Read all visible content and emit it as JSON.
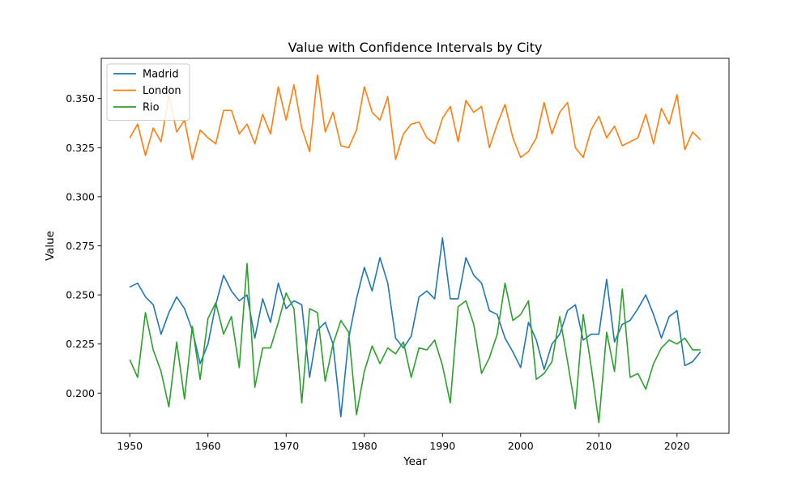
{
  "chart_data": {
    "type": "line",
    "title": "Value with Confidence Intervals by City",
    "xlabel": "Year",
    "ylabel": "Value",
    "xlim": [
      1946.35,
      2026.65
    ],
    "ylim": [
      0.1795,
      0.3705
    ],
    "xticks": [
      1950,
      1960,
      1970,
      1980,
      1990,
      2000,
      2010,
      2020
    ],
    "yticks": [
      0.2,
      0.225,
      0.25,
      0.275,
      0.3,
      0.325,
      0.35
    ],
    "ytick_labels": [
      "0.200",
      "0.225",
      "0.250",
      "0.275",
      "0.300",
      "0.325",
      "0.350"
    ],
    "grid": false,
    "legend_position": "top-left",
    "x": [
      1950,
      1951,
      1952,
      1953,
      1954,
      1955,
      1956,
      1957,
      1958,
      1959,
      1960,
      1961,
      1962,
      1963,
      1964,
      1965,
      1966,
      1967,
      1968,
      1969,
      1970,
      1971,
      1972,
      1973,
      1974,
      1975,
      1976,
      1977,
      1978,
      1979,
      1980,
      1981,
      1982,
      1983,
      1984,
      1985,
      1986,
      1987,
      1988,
      1989,
      1990,
      1991,
      1992,
      1993,
      1994,
      1995,
      1996,
      1997,
      1998,
      1999,
      2000,
      2001,
      2002,
      2003,
      2004,
      2005,
      2006,
      2007,
      2008,
      2009,
      2010,
      2011,
      2012,
      2013,
      2014,
      2015,
      2016,
      2017,
      2018,
      2019,
      2020,
      2021,
      2022,
      2023
    ],
    "series": [
      {
        "name": "Madrid",
        "color": "#1f77b4",
        "values": [
          0.254,
          0.256,
          0.249,
          0.245,
          0.23,
          0.241,
          0.249,
          0.243,
          0.232,
          0.215,
          0.225,
          0.245,
          0.26,
          0.252,
          0.247,
          0.25,
          0.228,
          0.248,
          0.236,
          0.256,
          0.243,
          0.247,
          0.245,
          0.208,
          0.232,
          0.236,
          0.225,
          0.188,
          0.228,
          0.248,
          0.264,
          0.252,
          0.269,
          0.256,
          0.228,
          0.223,
          0.229,
          0.249,
          0.252,
          0.248,
          0.279,
          0.248,
          0.248,
          0.269,
          0.26,
          0.256,
          0.242,
          0.24,
          0.228,
          0.221,
          0.213,
          0.236,
          0.227,
          0.212,
          0.225,
          0.23,
          0.242,
          0.245,
          0.227,
          0.23,
          0.23,
          0.258,
          0.226,
          0.235,
          0.237,
          0.243,
          0.25,
          0.24,
          0.228,
          0.239,
          0.242,
          0.214,
          0.216,
          0.221
        ]
      },
      {
        "name": "London",
        "color": "#ff7f0e",
        "values": [
          0.33,
          0.337,
          0.321,
          0.335,
          0.328,
          0.352,
          0.333,
          0.339,
          0.319,
          0.334,
          0.33,
          0.327,
          0.344,
          0.344,
          0.332,
          0.337,
          0.327,
          0.342,
          0.332,
          0.356,
          0.339,
          0.357,
          0.335,
          0.323,
          0.362,
          0.333,
          0.343,
          0.326,
          0.325,
          0.334,
          0.356,
          0.343,
          0.339,
          0.351,
          0.319,
          0.332,
          0.337,
          0.338,
          0.33,
          0.327,
          0.34,
          0.346,
          0.328,
          0.349,
          0.343,
          0.346,
          0.325,
          0.337,
          0.347,
          0.33,
          0.32,
          0.323,
          0.33,
          0.348,
          0.332,
          0.343,
          0.348,
          0.325,
          0.32,
          0.334,
          0.341,
          0.33,
          0.336,
          0.326,
          0.328,
          0.33,
          0.342,
          0.327,
          0.345,
          0.337,
          0.352,
          0.324,
          0.333,
          0.329
        ]
      },
      {
        "name": "Rio",
        "color": "#2ca02c",
        "values": [
          0.217,
          0.208,
          0.241,
          0.222,
          0.211,
          0.193,
          0.226,
          0.197,
          0.234,
          0.207,
          0.238,
          0.246,
          0.23,
          0.239,
          0.213,
          0.266,
          0.203,
          0.223,
          0.223,
          0.236,
          0.251,
          0.243,
          0.195,
          0.243,
          0.241,
          0.206,
          0.225,
          0.237,
          0.231,
          0.189,
          0.211,
          0.224,
          0.215,
          0.223,
          0.22,
          0.226,
          0.208,
          0.223,
          0.222,
          0.227,
          0.214,
          0.195,
          0.244,
          0.247,
          0.235,
          0.21,
          0.218,
          0.23,
          0.256,
          0.237,
          0.24,
          0.247,
          0.207,
          0.21,
          0.216,
          0.239,
          0.216,
          0.192,
          0.24,
          0.214,
          0.185,
          0.231,
          0.211,
          0.253,
          0.208,
          0.21,
          0.202,
          0.215,
          0.223,
          0.227,
          0.225,
          0.228,
          0.222,
          0.222
        ]
      }
    ]
  }
}
